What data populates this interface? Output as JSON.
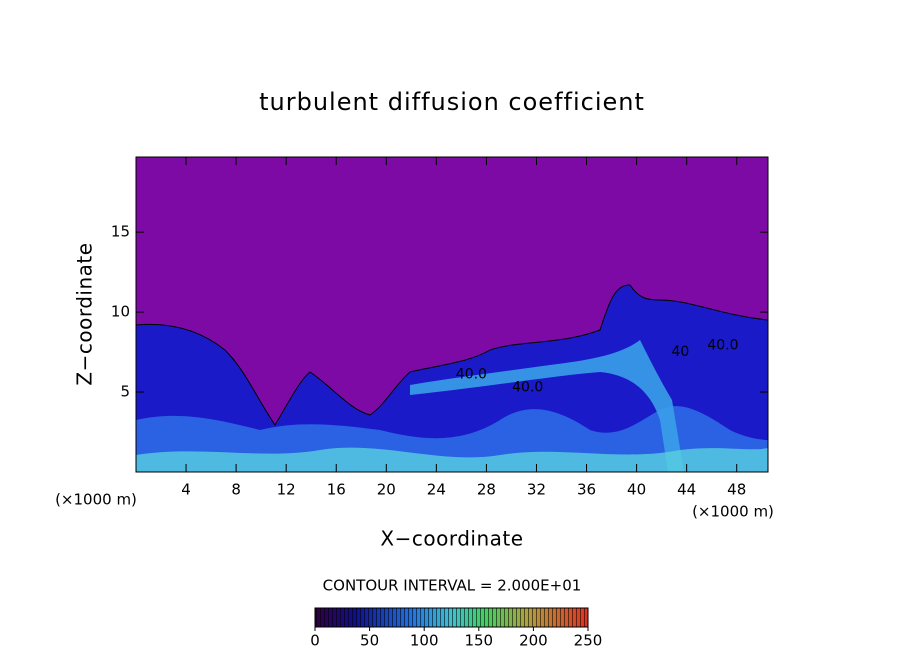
{
  "chart_data": {
    "type": "contour",
    "title": "turbulent diffusion coefficient",
    "xlabel": "X−coordinate",
    "ylabel": "Z−coordinate",
    "x_unit_label": "(×1000 m)",
    "y_unit_label": "(×1000 m)",
    "xlim": [
      0,
      50.5
    ],
    "xticks": [
      4,
      8,
      12,
      16,
      20,
      24,
      28,
      32,
      36,
      40,
      44,
      48
    ],
    "ylim": [
      0,
      19.7
    ],
    "yticks": [
      5,
      10,
      15
    ],
    "contour_interval_label": "CONTOUR INTERVAL = 2.000E+01",
    "colorbar": {
      "lim": [
        0,
        250
      ],
      "ticks": [
        0,
        50,
        100,
        150,
        200,
        250
      ]
    },
    "contour_labels": [
      {
        "text": "40.0",
        "x": 26.8,
        "y": 6.1
      },
      {
        "text": "40.0",
        "x": 31.3,
        "y": 5.3
      },
      {
        "text": "40.0",
        "x": 46.9,
        "y": 7.9
      },
      {
        "text": "40",
        "x": 43.5,
        "y": 7.5
      }
    ]
  }
}
